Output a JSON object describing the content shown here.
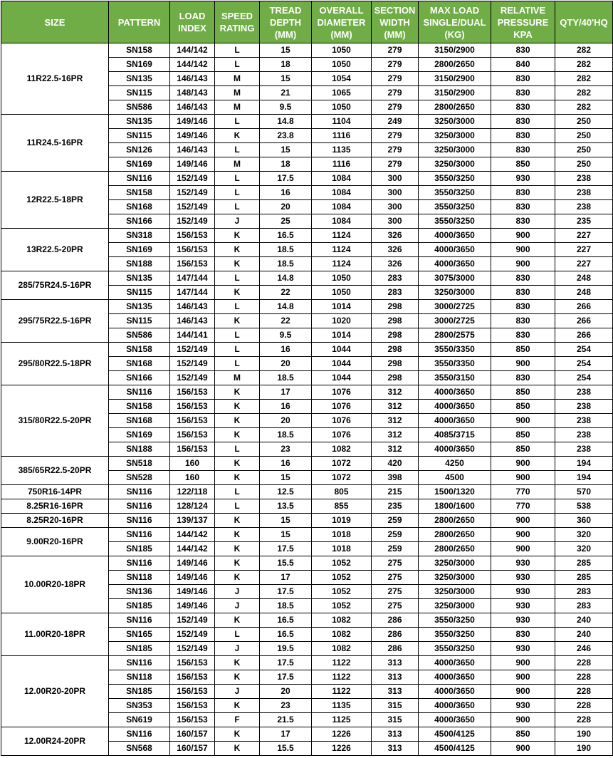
{
  "header": [
    "SIZE",
    "PATTERN",
    "LOAD INDEX",
    "SPEED RATING",
    "TREAD DEPTH (MM)",
    "OVERALL DIAMETER (MM)",
    "SECTION WIDTH (MM)",
    "MAX LOAD SINGLE/DUAL (KG)",
    "RELATIVE PRESSURE KPA",
    "QTY/40'HQ"
  ],
  "groups": [
    {
      "size": "11R22.5-16PR",
      "rows": [
        [
          "SN158",
          "144/142",
          "L",
          "15",
          "1050",
          "279",
          "3150/2900",
          "830",
          "282"
        ],
        [
          "SN169",
          "144/142",
          "L",
          "18",
          "1050",
          "279",
          "2800/2650",
          "840",
          "282"
        ],
        [
          "SN135",
          "146/143",
          "M",
          "15",
          "1054",
          "279",
          "3150/2900",
          "830",
          "282"
        ],
        [
          "SN115",
          "148/143",
          "M",
          "21",
          "1065",
          "279",
          "3150/2900",
          "830",
          "282"
        ],
        [
          "SN586",
          "146/143",
          "M",
          "9.5",
          "1050",
          "279",
          "2800/2650",
          "830",
          "282"
        ]
      ]
    },
    {
      "size": "11R24.5-16PR",
      "rows": [
        [
          "SN135",
          "149/146",
          "L",
          "14.8",
          "1104",
          "249",
          "3250/3000",
          "830",
          "250"
        ],
        [
          "SN115",
          "149/146",
          "K",
          "23.8",
          "1116",
          "279",
          "3250/3000",
          "830",
          "250"
        ],
        [
          "SN126",
          "146/143",
          "L",
          "15",
          "1135",
          "279",
          "3250/3000",
          "830",
          "250"
        ],
        [
          "SN169",
          "149/146",
          "M",
          "18",
          "1116",
          "279",
          "3250/3000",
          "850",
          "250"
        ]
      ]
    },
    {
      "size": "12R22.5-18PR",
      "rows": [
        [
          "SN116",
          "152/149",
          "L",
          "17.5",
          "1084",
          "300",
          "3550/3250",
          "930",
          "238"
        ],
        [
          "SN158",
          "152/149",
          "L",
          "16",
          "1084",
          "300",
          "3550/3250",
          "830",
          "238"
        ],
        [
          "SN168",
          "152/149",
          "L",
          "20",
          "1084",
          "300",
          "3550/3250",
          "830",
          "238"
        ],
        [
          "SN166",
          "152/149",
          "J",
          "25",
          "1084",
          "300",
          "3550/3250",
          "830",
          "235"
        ]
      ]
    },
    {
      "size": "13R22.5-20PR",
      "rows": [
        [
          "SN318",
          "156/153",
          "K",
          "16.5",
          "1124",
          "326",
          "4000/3650",
          "900",
          "227"
        ],
        [
          "SN169",
          "156/153",
          "K",
          "18.5",
          "1124",
          "326",
          "4000/3650",
          "900",
          "227"
        ],
        [
          "SN188",
          "156/153",
          "K",
          "18.5",
          "1124",
          "326",
          "4000/3650",
          "900",
          "227"
        ]
      ]
    },
    {
      "size": "285/75R24.5-16PR",
      "rows": [
        [
          "SN135",
          "147/144",
          "L",
          "14.8",
          "1050",
          "283",
          "3075/3000",
          "830",
          "248"
        ],
        [
          "SN115",
          "147/144",
          "K",
          "22",
          "1050",
          "283",
          "3250/3000",
          "830",
          "248"
        ]
      ]
    },
    {
      "size": "295/75R22.5-16PR",
      "rows": [
        [
          "SN135",
          "146/143",
          "L",
          "14.8",
          "1014",
          "298",
          "3000/2725",
          "830",
          "266"
        ],
        [
          "SN115",
          "146/143",
          "K",
          "22",
          "1020",
          "298",
          "3000/2725",
          "830",
          "266"
        ],
        [
          "SN586",
          "144/141",
          "L",
          "9.5",
          "1014",
          "298",
          "2800/2575",
          "830",
          "266"
        ]
      ]
    },
    {
      "size": "295/80R22.5-18PR",
      "rows": [
        [
          "SN158",
          "152/149",
          "L",
          "16",
          "1044",
          "298",
          "3550/3350",
          "850",
          "254"
        ],
        [
          "SN168",
          "152/149",
          "L",
          "20",
          "1044",
          "298",
          "3550/3350",
          "900",
          "254"
        ],
        [
          "SN166",
          "152/149",
          "M",
          "18.5",
          "1044",
          "298",
          "3550/3150",
          "830",
          "254"
        ]
      ]
    },
    {
      "size": "315/80R22.5-20PR",
      "rows": [
        [
          "SN116",
          "156/153",
          "K",
          "17",
          "1076",
          "312",
          "4000/3650",
          "850",
          "238"
        ],
        [
          "SN158",
          "156/153",
          "K",
          "16",
          "1076",
          "312",
          "4000/3650",
          "850",
          "238"
        ],
        [
          "SN168",
          "156/153",
          "K",
          "20",
          "1076",
          "312",
          "4000/3650",
          "900",
          "238"
        ],
        [
          "SN169",
          "156/153",
          "K",
          "18.5",
          "1076",
          "312",
          "4085/3715",
          "850",
          "238"
        ],
        [
          "SN188",
          "156/153",
          "L",
          "23",
          "1082",
          "312",
          "4000/3650",
          "850",
          "238"
        ]
      ]
    },
    {
      "size": "385/65R22.5-20PR",
      "rows": [
        [
          "SN518",
          "160",
          "K",
          "16",
          "1072",
          "420",
          "4250",
          "900",
          "194"
        ],
        [
          "SN528",
          "160",
          "K",
          "15",
          "1072",
          "398",
          "4500",
          "900",
          "194"
        ]
      ]
    },
    {
      "size": "750R16-14PR",
      "rows": [
        [
          "SN116",
          "122/118",
          "L",
          "12.5",
          "805",
          "215",
          "1500/1320",
          "770",
          "570"
        ]
      ]
    },
    {
      "size": "8.25R16-16PR",
      "rows": [
        [
          "SN116",
          "128/124",
          "L",
          "13.5",
          "855",
          "235",
          "1800/1600",
          "770",
          "538"
        ]
      ]
    },
    {
      "size": "8.25R20-16PR",
      "rows": [
        [
          "SN116",
          "139/137",
          "K",
          "15",
          "1019",
          "259",
          "2800/2650",
          "900",
          "360"
        ]
      ]
    },
    {
      "size": "9.00R20-16PR",
      "rows": [
        [
          "SN116",
          "144/142",
          "K",
          "15",
          "1018",
          "259",
          "2800/2650",
          "900",
          "320"
        ],
        [
          "SN185",
          "144/142",
          "K",
          "17.5",
          "1018",
          "259",
          "2800/2650",
          "900",
          "320"
        ]
      ]
    },
    {
      "size": "10.00R20-18PR",
      "rows": [
        [
          "SN116",
          "149/146",
          "K",
          "15.5",
          "1052",
          "275",
          "3250/3000",
          "930",
          "285"
        ],
        [
          "SN118",
          "149/146",
          "K",
          "17",
          "1052",
          "275",
          "3250/3000",
          "930",
          "285"
        ],
        [
          "SN136",
          "149/146",
          "J",
          "17.5",
          "1052",
          "275",
          "3250/3000",
          "930",
          "283"
        ],
        [
          "SN185",
          "149/146",
          "J",
          "18.5",
          "1052",
          "275",
          "3250/3000",
          "930",
          "283"
        ]
      ]
    },
    {
      "size": "11.00R20-18PR",
      "rows": [
        [
          "SN116",
          "152/149",
          "K",
          "16.5",
          "1082",
          "286",
          "3550/3250",
          "930",
          "240"
        ],
        [
          "SN165",
          "152/149",
          "L",
          "16.5",
          "1082",
          "286",
          "3550/3250",
          "830",
          "240"
        ],
        [
          "SN185",
          "152/149",
          "J",
          "19.5",
          "1082",
          "286",
          "3550/3250",
          "930",
          "246"
        ]
      ]
    },
    {
      "size": "12.00R20-20PR",
      "rows": [
        [
          "SN116",
          "156/153",
          "K",
          "17.5",
          "1122",
          "313",
          "4000/3650",
          "900",
          "228"
        ],
        [
          "SN118",
          "156/153",
          "K",
          "17.5",
          "1122",
          "313",
          "4000/3650",
          "900",
          "228"
        ],
        [
          "SN185",
          "156/153",
          "J",
          "20",
          "1122",
          "313",
          "4000/3650",
          "900",
          "228"
        ],
        [
          "SN353",
          "156/153",
          "K",
          "23",
          "1135",
          "315",
          "4000/3650",
          "930",
          "228"
        ],
        [
          "SN619",
          "156/153",
          "F",
          "21.5",
          "1125",
          "315",
          "4000/3650",
          "900",
          "228"
        ]
      ]
    },
    {
      "size": "12.00R24-20PR",
      "rows": [
        [
          "SN116",
          "160/157",
          "K",
          "17",
          "1226",
          "313",
          "4500/4125",
          "850",
          "190"
        ],
        [
          "SN568",
          "160/157",
          "K",
          "15.5",
          "1226",
          "313",
          "4500/4125",
          "900",
          "190"
        ]
      ]
    }
  ]
}
